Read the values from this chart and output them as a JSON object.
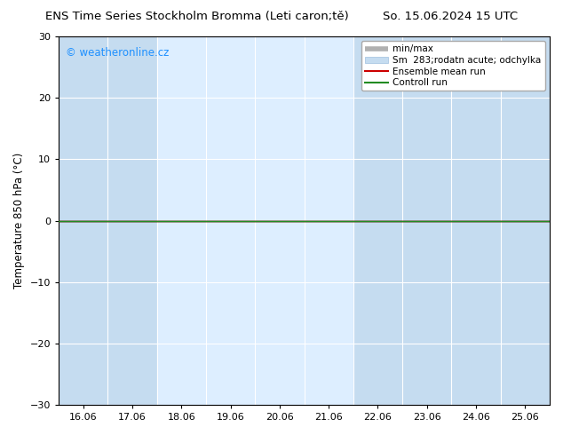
{
  "title_left": "ENS Time Series Stockholm Bromma (Leti caron;tě)",
  "title_right": "So. 15.06.2024 15 UTC",
  "ylabel": "Temperature 850 hPa (°C)",
  "xlim_dates": [
    "16.06",
    "17.06",
    "18.06",
    "19.06",
    "20.06",
    "21.06",
    "22.06",
    "23.06",
    "24.06",
    "25.06"
  ],
  "ylim": [
    -30,
    30
  ],
  "yticks": [
    -30,
    -20,
    -10,
    0,
    10,
    20,
    30
  ],
  "bg_color": "#ffffff",
  "plot_bg_color": "#ffffff",
  "band_color_light": "#ddeeff",
  "band_color_dark": "#c5dcf0",
  "zero_line_color": "#000000",
  "ensemble_mean_color": "#cc0000",
  "control_run_color": "#228B22",
  "watermark_text": "© weatheronline.cz",
  "watermark_color": "#1E90FF",
  "title_fontsize": 9.5,
  "axis_fontsize": 8.5,
  "tick_fontsize": 8,
  "watermark_fontsize": 8.5,
  "legend_fontsize": 7.5
}
